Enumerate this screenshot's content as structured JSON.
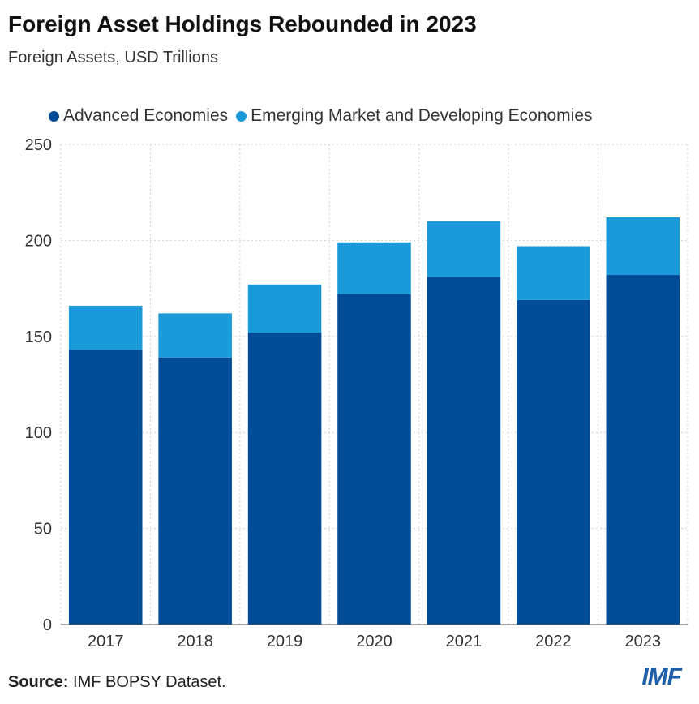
{
  "title": "Foreign Asset Holdings Rebounded in 2023",
  "subtitle": "Foreign Assets, USD Trillions",
  "source_label": "Source:",
  "source_text": "IMF BOPSY Dataset.",
  "logo": "IMF",
  "colors": {
    "advanced": "#004c97",
    "emerging": "#1a9ad9",
    "grid": "#cfcfcf"
  },
  "chart_data": {
    "type": "bar",
    "stacked": true,
    "categories": [
      "2017",
      "2018",
      "2019",
      "2020",
      "2021",
      "2022",
      "2023"
    ],
    "series": [
      {
        "name": "Advanced Economies",
        "values": [
          143,
          139,
          152,
          172,
          181,
          169,
          182
        ]
      },
      {
        "name": "Emerging Market and Developing Economies",
        "values": [
          23,
          23,
          25,
          27,
          29,
          28,
          30
        ]
      }
    ],
    "yticks": [
      0,
      50,
      100,
      150,
      200,
      250
    ],
    "ylim": [
      0,
      250
    ],
    "grid": "dotted",
    "legend_position": "top-left"
  }
}
